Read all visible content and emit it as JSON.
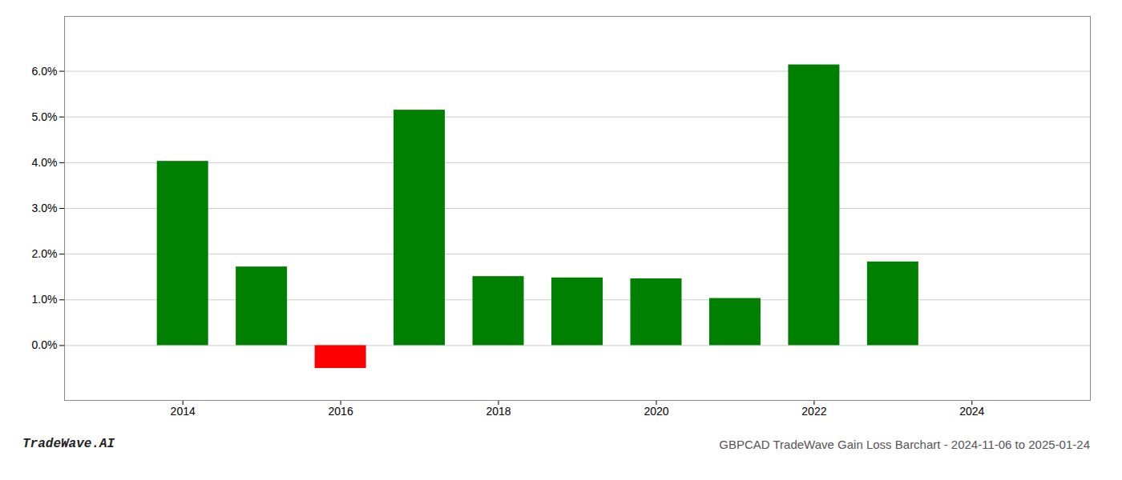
{
  "chart_data": {
    "type": "bar",
    "title": "GBPCAD TradeWave Gain Loss Barchart - 2024-11-06 to 2025-01-24",
    "annotations": [
      "TradeWave.AI"
    ],
    "x": [
      2014,
      2015,
      2016,
      2017,
      2018,
      2019,
      2020,
      2021,
      2022,
      2023
    ],
    "values": [
      0.0403,
      0.0172,
      -0.005,
      0.0515,
      0.0151,
      0.0148,
      0.0146,
      0.0103,
      0.0614,
      0.0183
    ],
    "colors": [
      "#008000",
      "#008000",
      "#ff0000",
      "#008000",
      "#008000",
      "#008000",
      "#008000",
      "#008000",
      "#008000",
      "#008000"
    ],
    "xlim": [
      2012.5,
      2025.5
    ],
    "ylim": [
      -0.012,
      0.072
    ],
    "xticks": [
      2014,
      2016,
      2018,
      2020,
      2022,
      2024
    ],
    "yticks": [
      {
        "value": 0.0,
        "label": "0.0%"
      },
      {
        "value": 0.01,
        "label": "1.0%"
      },
      {
        "value": 0.02,
        "label": "2.0%"
      },
      {
        "value": 0.03,
        "label": "3.0%"
      },
      {
        "value": 0.04,
        "label": "4.0%"
      },
      {
        "value": 0.05,
        "label": "5.0%"
      },
      {
        "value": 0.06,
        "label": "6.0%"
      }
    ],
    "grid": true
  }
}
